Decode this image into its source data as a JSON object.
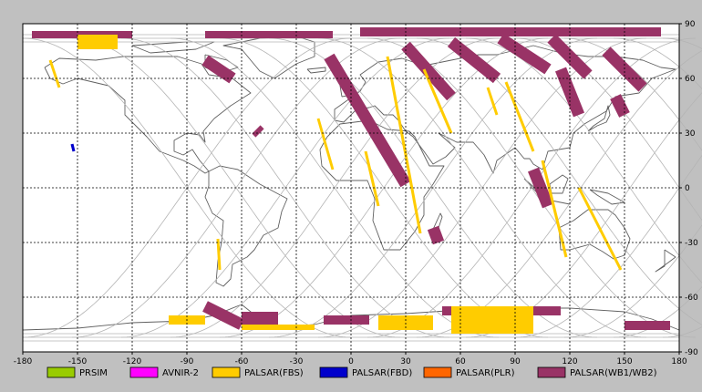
{
  "map": {
    "lon_ticks": [
      "-180",
      "-150",
      "-120",
      "-90",
      "-60",
      "-30",
      "0",
      "30",
      "60",
      "90",
      "120",
      "150",
      "180"
    ],
    "lat_ticks": [
      "90",
      "60",
      "30",
      "0",
      "-30",
      "-60",
      "-90"
    ],
    "lon_values": [
      -180,
      -150,
      -120,
      -90,
      -60,
      -30,
      0,
      30,
      60,
      90,
      120,
      150,
      180
    ],
    "lat_values": [
      90,
      60,
      30,
      0,
      -30,
      -60,
      -90
    ],
    "colors": {
      "frame_bg": "#c0c0c0",
      "map_bg": "#ffffff",
      "grid": "#000000",
      "coast": "#606060",
      "orbit": "#b4b4b4",
      "fbs": "#ffcc00",
      "wb": "#993366",
      "fbd": "#0000cc"
    },
    "swaths_wb": [
      {
        "id": "wb-arctic-1",
        "lon": [
          -175,
          -120
        ],
        "lat": [
          86,
          82
        ]
      },
      {
        "id": "wb-arctic-2",
        "lon": [
          -80,
          -10
        ],
        "lat": [
          86,
          82
        ]
      },
      {
        "id": "wb-arctic-3",
        "lon": [
          5,
          170
        ],
        "lat": [
          88,
          83
        ]
      },
      {
        "id": "wb-europe-long",
        "lon": [
          -12,
          30
        ],
        "lat": [
          72,
          2
        ]
      },
      {
        "id": "wb-ru-1",
        "lon": [
          30,
          55
        ],
        "lat": [
          78,
          50
        ]
      },
      {
        "id": "wb-ru-2",
        "lon": [
          55,
          80
        ],
        "lat": [
          80,
          60
        ]
      },
      {
        "id": "wb-ru-3",
        "lon": [
          82,
          108
        ],
        "lat": [
          82,
          65
        ]
      },
      {
        "id": "wb-ru-4",
        "lon": [
          110,
          130
        ],
        "lat": [
          82,
          62
        ]
      },
      {
        "id": "wb-asia-1",
        "lon": [
          115,
          125
        ],
        "lat": [
          65,
          40
        ]
      },
      {
        "id": "wb-asia-2",
        "lon": [
          140,
          160
        ],
        "lat": [
          75,
          55
        ]
      },
      {
        "id": "wb-asia-3",
        "lon": [
          145,
          150
        ],
        "lat": [
          50,
          40
        ]
      },
      {
        "id": "wb-indo",
        "lon": [
          100,
          108
        ],
        "lat": [
          10,
          -10
        ]
      },
      {
        "id": "wb-ca",
        "lon": [
          -80,
          -65
        ],
        "lat": [
          70,
          60
        ]
      },
      {
        "id": "wb-na-dot",
        "lon": [
          -52,
          -50
        ],
        "lat": [
          32,
          30
        ]
      },
      {
        "id": "wb-af-dot",
        "lon": [
          45,
          48
        ],
        "lat": [
          -22,
          -30
        ]
      },
      {
        "id": "wb-ant-1",
        "lon": [
          -80,
          -60
        ],
        "lat": [
          -65,
          -75
        ]
      },
      {
        "id": "wb-ant-2",
        "lon": [
          -60,
          -40
        ],
        "lat": [
          -68,
          -75
        ]
      },
      {
        "id": "wb-ant-3",
        "lon": [
          -15,
          10
        ],
        "lat": [
          -70,
          -75
        ]
      },
      {
        "id": "wb-ant-4",
        "lon": [
          50,
          70
        ],
        "lat": [
          -65,
          -70
        ]
      },
      {
        "id": "wb-ant-5",
        "lon": [
          100,
          115
        ],
        "lat": [
          -65,
          -70
        ]
      },
      {
        "id": "wb-ant-6",
        "lon": [
          150,
          175
        ],
        "lat": [
          -73,
          -78
        ]
      }
    ],
    "swaths_fbs": [
      {
        "id": "fbs-1",
        "lon": [
          -150,
          -128
        ],
        "lat": [
          84,
          76
        ]
      },
      {
        "id": "fbs-2",
        "lon": [
          -165,
          -160
        ],
        "lat": [
          70,
          55
        ]
      },
      {
        "id": "fbs-3",
        "lon": [
          20,
          38
        ],
        "lat": [
          72,
          -25
        ]
      },
      {
        "id": "fbs-4",
        "lon": [
          -18,
          -10
        ],
        "lat": [
          38,
          10
        ]
      },
      {
        "id": "fbs-5",
        "lon": [
          8,
          15
        ],
        "lat": [
          20,
          -10
        ]
      },
      {
        "id": "fbs-6",
        "lon": [
          40,
          55
        ],
        "lat": [
          65,
          30
        ]
      },
      {
        "id": "fbs-7",
        "lon": [
          75,
          80
        ],
        "lat": [
          55,
          40
        ]
      },
      {
        "id": "fbs-8",
        "lon": [
          85,
          100
        ],
        "lat": [
          58,
          20
        ]
      },
      {
        "id": "fbs-9",
        "lon": [
          105,
          118
        ],
        "lat": [
          15,
          -38
        ]
      },
      {
        "id": "fbs-10",
        "lon": [
          125,
          148
        ],
        "lat": [
          0,
          -45
        ]
      },
      {
        "id": "fbs-11",
        "lon": [
          -73,
          -72
        ],
        "lat": [
          -28,
          -45
        ]
      },
      {
        "id": "fbs-12",
        "lon": [
          -100,
          -80
        ],
        "lat": [
          -70,
          -75
        ]
      },
      {
        "id": "fbs-13",
        "lon": [
          -60,
          -20
        ],
        "lat": [
          -75,
          -78
        ]
      },
      {
        "id": "fbs-14",
        "lon": [
          15,
          45
        ],
        "lat": [
          -70,
          -78
        ]
      },
      {
        "id": "fbs-15",
        "lon": [
          55,
          100
        ],
        "lat": [
          -65,
          -80
        ]
      }
    ],
    "swaths_fbd": [
      {
        "id": "fbd-1",
        "lon": [
          -153,
          -152
        ],
        "lat": [
          24,
          20
        ]
      }
    ]
  },
  "legend": {
    "items": [
      {
        "label": "PRSIM",
        "color": "#99cc00"
      },
      {
        "label": "AVNIR-2",
        "color": "#ff00ff"
      },
      {
        "label": "PALSAR(FBS)",
        "color": "#ffcc00"
      },
      {
        "label": "PALSAR(FBD)",
        "color": "#0000cc"
      },
      {
        "label": "PALSAR(PLR)",
        "color": "#ff6600"
      },
      {
        "label": "PALSAR(WB1/WB2)",
        "color": "#993366"
      }
    ]
  }
}
